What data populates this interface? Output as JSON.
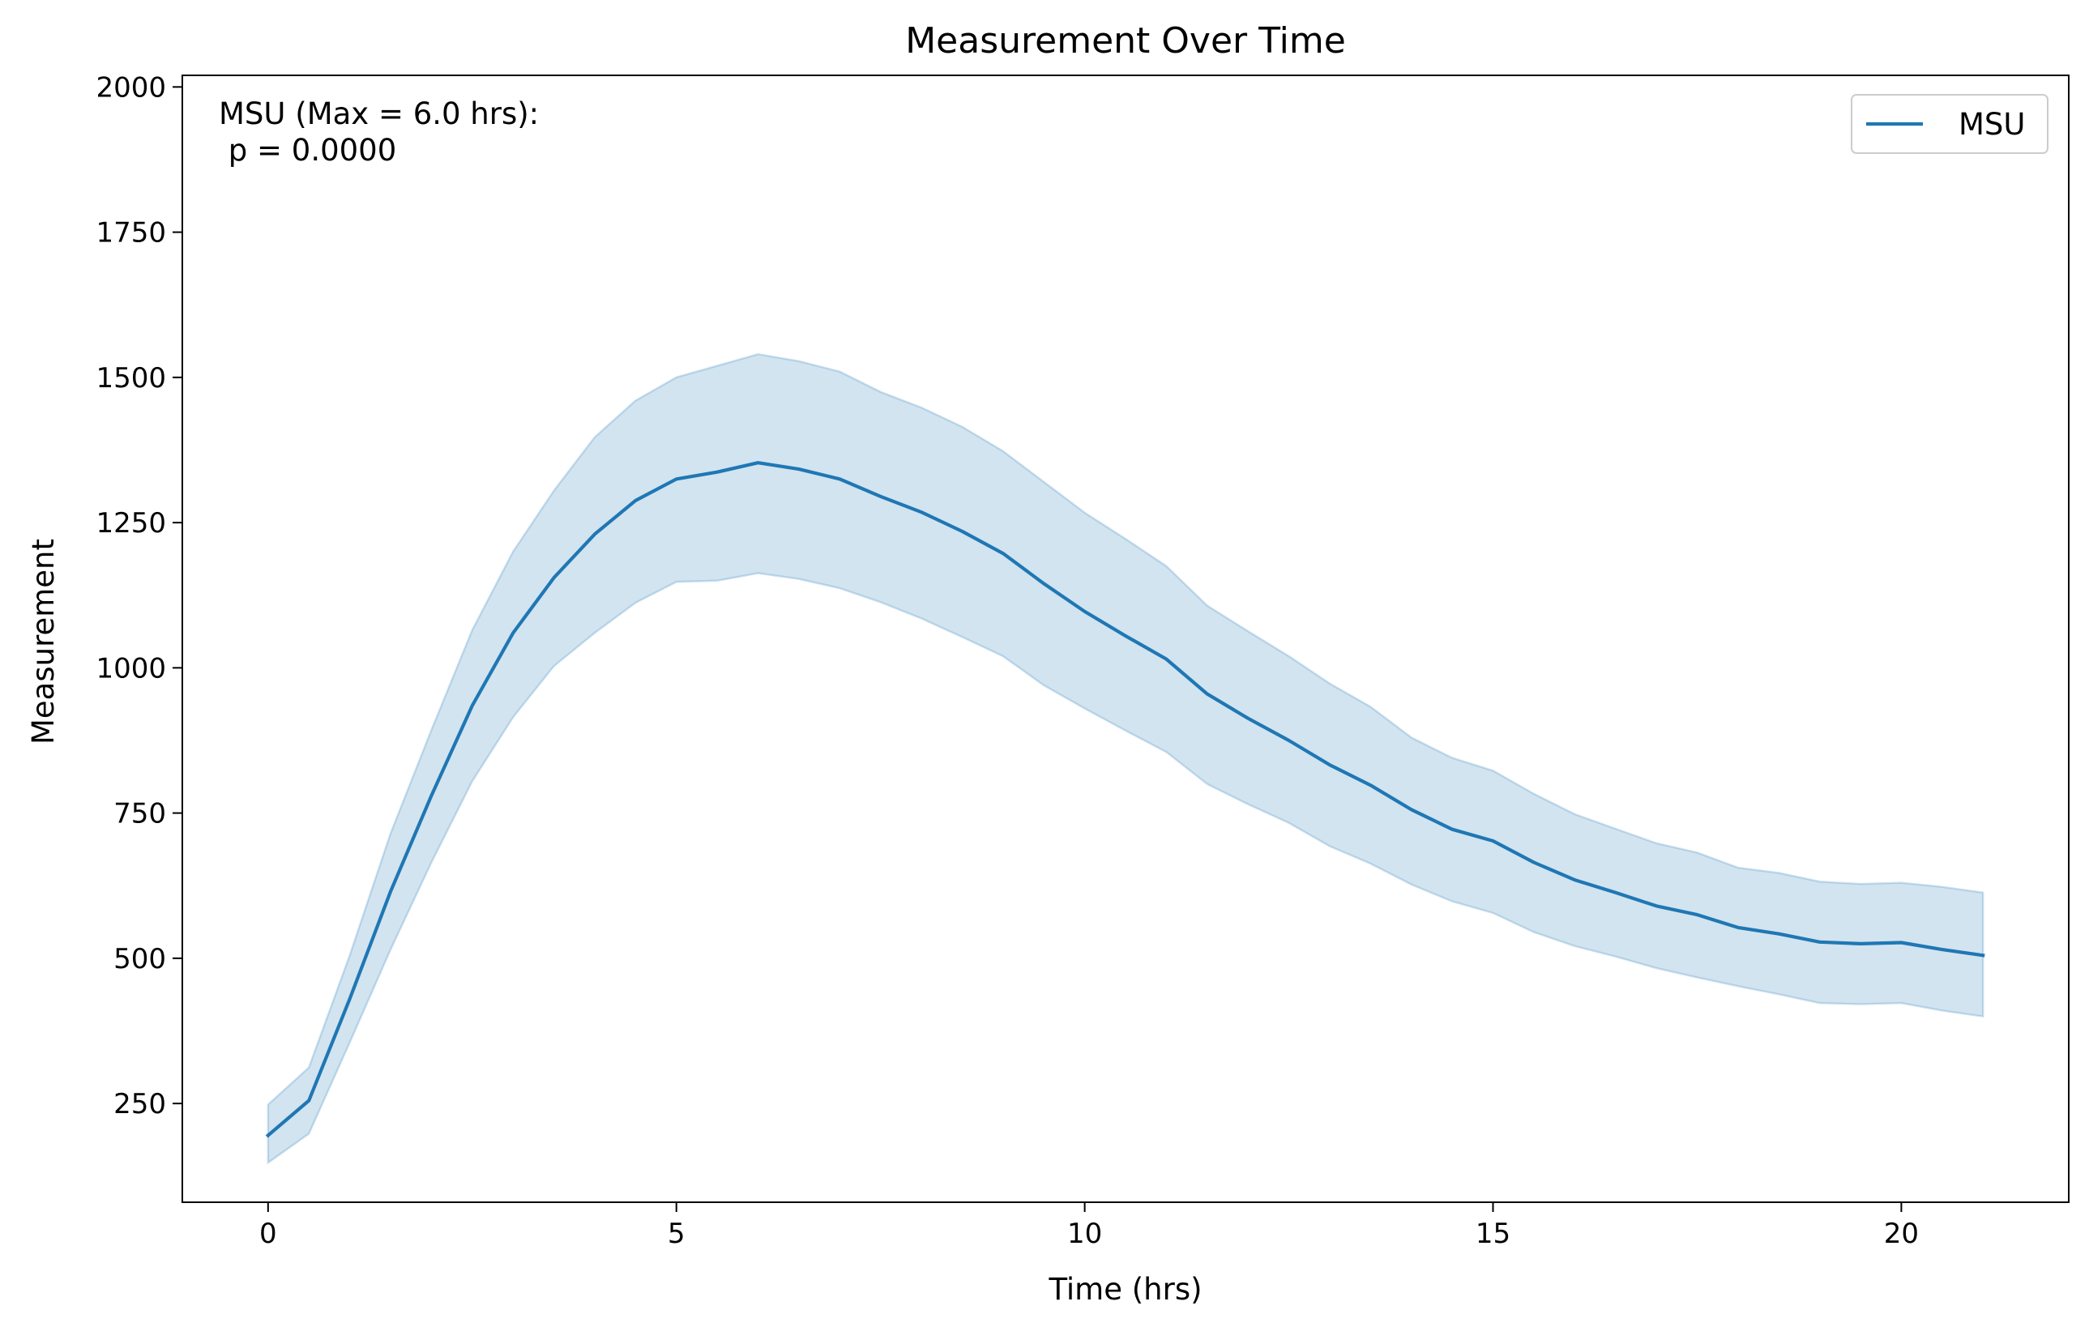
{
  "chart_data": {
    "type": "line",
    "title": "Measurement Over Time",
    "xlabel": "Time (hrs)",
    "ylabel": "Measurement",
    "xlim": [
      -1.05,
      22.05
    ],
    "ylim": [
      80,
      2020
    ],
    "xticks": [
      0,
      5,
      10,
      15,
      20
    ],
    "yticks": [
      250,
      500,
      750,
      1000,
      1250,
      1500,
      1750,
      2000
    ],
    "grid": false,
    "legend_position": "top-right",
    "annotation_lines": [
      "MSU (Max = 6.0 hrs):",
      " p = 0.0000"
    ],
    "series": [
      {
        "name": "MSU",
        "color": "#1f77b4",
        "band_color": "#1f77b4",
        "x": [
          0,
          0.5,
          1,
          1.5,
          2,
          2.5,
          3,
          3.5,
          4,
          4.5,
          5,
          5.5,
          6,
          6.5,
          7,
          7.5,
          8,
          8.5,
          9,
          9.5,
          10,
          10.5,
          11,
          11.5,
          12,
          12.5,
          13,
          13.5,
          14,
          14.5,
          15,
          15.5,
          16,
          16.5,
          17,
          17.5,
          18,
          18.5,
          19,
          19.5,
          20,
          20.5,
          21
        ],
        "y": [
          195,
          255,
          430,
          615,
          780,
          935,
          1060,
          1155,
          1230,
          1288,
          1325,
          1337,
          1353,
          1342,
          1325,
          1295,
          1268,
          1235,
          1197,
          1145,
          1097,
          1055,
          1015,
          955,
          913,
          875,
          833,
          798,
          756,
          722,
          702,
          665,
          635,
          613,
          590,
          575,
          553,
          542,
          528,
          525,
          527,
          515,
          505
        ],
        "lower": [
          148,
          198,
          355,
          515,
          665,
          805,
          915,
          1003,
          1060,
          1112,
          1148,
          1150,
          1163,
          1153,
          1137,
          1113,
          1085,
          1053,
          1020,
          970,
          930,
          892,
          855,
          800,
          765,
          733,
          693,
          663,
          627,
          598,
          578,
          545,
          521,
          503,
          483,
          467,
          452,
          438,
          423,
          421,
          423,
          410,
          400
        ],
        "upper": [
          248,
          312,
          505,
          715,
          893,
          1065,
          1200,
          1305,
          1397,
          1460,
          1500,
          1520,
          1540,
          1528,
          1510,
          1475,
          1448,
          1415,
          1373,
          1320,
          1267,
          1222,
          1175,
          1107,
          1063,
          1020,
          973,
          933,
          880,
          845,
          823,
          783,
          748,
          723,
          698,
          682,
          656,
          647,
          632,
          628,
          630,
          623,
          613
        ]
      }
    ]
  }
}
